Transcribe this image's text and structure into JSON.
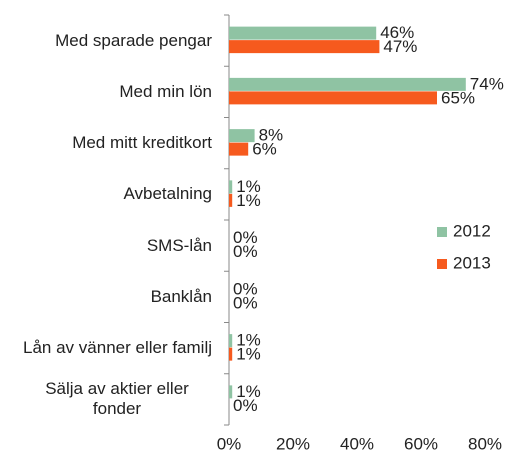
{
  "chart_data": {
    "type": "hbar",
    "categories": [
      "Med sparade pengar",
      "Med min lön",
      "Med mitt kreditkort",
      "Avbetalning",
      "SMS-lån",
      "Banklån",
      "Lån av vänner eller familj",
      "Sälja av aktier eller fonder"
    ],
    "series": [
      {
        "name": "2012",
        "color": "#8fc3a3",
        "values": [
          46,
          74,
          8,
          1,
          0,
          0,
          1,
          1
        ],
        "value_labels": [
          "46%",
          "74%",
          "8%",
          "1%",
          "0%",
          "0%",
          "1%",
          "1%"
        ]
      },
      {
        "name": "2013",
        "color": "#f65a1e",
        "values": [
          47,
          65,
          6,
          1,
          0,
          0,
          1,
          0
        ],
        "value_labels": [
          "47%",
          "65%",
          "6%",
          "1%",
          "0%",
          "0%",
          "1%",
          "0%"
        ]
      }
    ],
    "xlim": [
      0,
      80
    ],
    "xticks": [
      {
        "value": 0,
        "label": "0%"
      },
      {
        "value": 20,
        "label": "20%"
      },
      {
        "value": 40,
        "label": "40%"
      },
      {
        "value": 60,
        "label": "60%"
      },
      {
        "value": 80,
        "label": "80%"
      }
    ],
    "legend_position": "right"
  }
}
